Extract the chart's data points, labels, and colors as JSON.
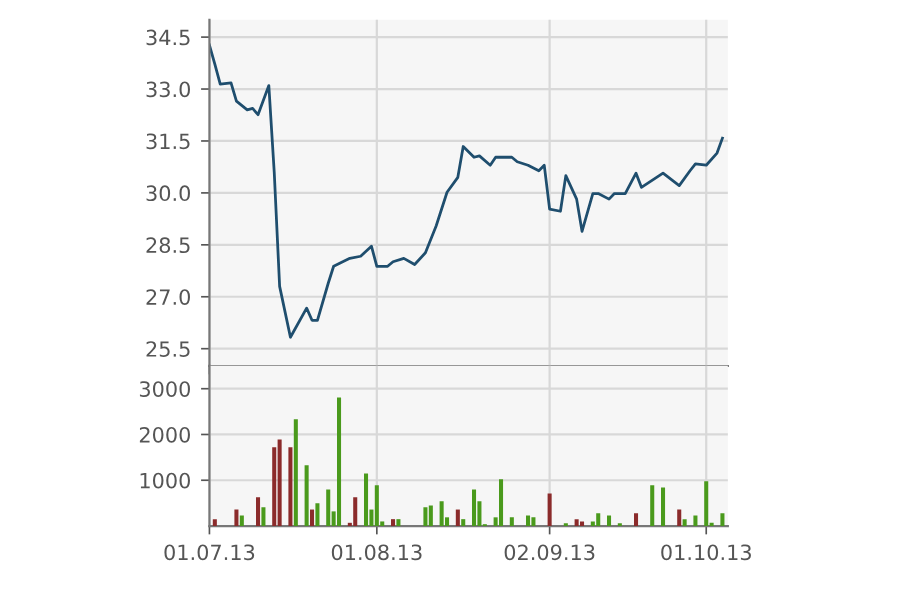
{
  "chart_data": [
    {
      "type": "line",
      "x": [
        "2013-07-01",
        "2013-07-02",
        "2013-07-03",
        "2013-07-05",
        "2013-07-06",
        "2013-07-08",
        "2013-07-09",
        "2013-07-10",
        "2013-07-12",
        "2013-07-13",
        "2013-07-14",
        "2013-07-16",
        "2013-07-19",
        "2013-07-20",
        "2013-07-21",
        "2013-07-23",
        "2013-07-24",
        "2013-07-27",
        "2013-07-29",
        "2013-07-31",
        "2013-08-01",
        "2013-08-03",
        "2013-08-04",
        "2013-08-06",
        "2013-08-08",
        "2013-08-10",
        "2013-08-12",
        "2013-08-14",
        "2013-08-16",
        "2013-08-17",
        "2013-08-19",
        "2013-08-20",
        "2013-08-22",
        "2013-08-23",
        "2013-08-26",
        "2013-08-27",
        "2013-08-29",
        "2013-08-31",
        "2013-09-01",
        "2013-09-02",
        "2013-09-04",
        "2013-09-05",
        "2013-09-07",
        "2013-09-08",
        "2013-09-10",
        "2013-09-11",
        "2013-09-13",
        "2013-09-14",
        "2013-09-16",
        "2013-09-18",
        "2013-09-19",
        "2013-09-23",
        "2013-09-26",
        "2013-09-28",
        "2013-09-29",
        "2013-10-01",
        "2013-10-03",
        "2013-10-04"
      ],
      "series": [
        {
          "color": "#1f4e6e",
          "values": [
            34.27,
            33.72,
            33.14,
            33.18,
            32.65,
            32.4,
            32.44,
            32.26,
            33.1,
            30.6,
            27.3,
            25.83,
            26.67,
            26.32,
            26.32,
            27.39,
            27.88,
            28.11,
            28.17,
            28.46,
            27.88,
            27.88,
            28.01,
            28.11,
            27.93,
            28.27,
            29.05,
            30.02,
            30.45,
            31.34,
            31.03,
            31.07,
            30.8,
            31.03,
            31.03,
            30.9,
            30.8,
            30.64,
            30.8,
            29.53,
            29.47,
            30.5,
            29.82,
            28.89,
            29.98,
            29.98,
            29.82,
            29.98,
            29.98,
            30.57,
            30.16,
            30.57,
            30.21,
            30.64,
            30.84,
            30.8,
            31.15,
            31.58
          ]
        }
      ],
      "xlim": [
        "2013-07-01",
        "2013-10-05"
      ],
      "xticks": [
        {
          "value": "2013-07-01",
          "label": null
        },
        {
          "value": "2013-08-01",
          "label": null
        },
        {
          "value": "2013-09-02",
          "label": null
        },
        {
          "value": "2013-10-01",
          "label": null
        }
      ],
      "ylim": [
        25,
        35
      ],
      "yticks": [
        {
          "value": 25.5,
          "label": "25.5"
        },
        {
          "value": 27,
          "label": "27.0"
        },
        {
          "value": 28.5,
          "label": "28.5"
        },
        {
          "value": 30,
          "label": "30.0"
        },
        {
          "value": 31.5,
          "label": "31.5"
        },
        {
          "value": 33,
          "label": "33.0"
        },
        {
          "value": 34.5,
          "label": "34.5"
        }
      ],
      "grid": true,
      "tick_labels": "y"
    },
    {
      "type": "bar",
      "x": [
        "2013-07-02",
        "2013-07-06",
        "2013-07-07",
        "2013-07-10",
        "2013-07-11",
        "2013-07-13",
        "2013-07-14",
        "2013-07-16",
        "2013-07-17",
        "2013-07-19",
        "2013-07-20",
        "2013-07-21",
        "2013-07-23",
        "2013-07-24",
        "2013-07-25",
        "2013-07-27",
        "2013-07-28",
        "2013-07-30",
        "2013-07-31",
        "2013-08-01",
        "2013-08-02",
        "2013-08-04",
        "2013-08-05",
        "2013-08-10",
        "2013-08-11",
        "2013-08-13",
        "2013-08-14",
        "2013-08-16",
        "2013-08-17",
        "2013-08-19",
        "2013-08-20",
        "2013-08-21",
        "2013-08-23",
        "2013-08-24",
        "2013-08-26",
        "2013-08-29",
        "2013-08-30",
        "2013-09-02",
        "2013-09-05",
        "2013-09-07",
        "2013-09-08",
        "2013-09-10",
        "2013-09-11",
        "2013-09-13",
        "2013-09-15",
        "2013-09-18",
        "2013-09-21",
        "2013-09-23",
        "2013-09-26",
        "2013-09-27",
        "2013-09-29",
        "2013-10-01",
        "2013-10-02",
        "2013-10-04"
      ],
      "series": [
        {
          "values": [
            150,
            360,
            230,
            630,
            410,
            1720,
            1890,
            1720,
            2330,
            1330,
            360,
            500,
            800,
            320,
            2810,
            70,
            630,
            1150,
            360,
            890,
            100,
            150,
            150,
            410,
            450,
            540,
            190,
            360,
            150,
            800,
            540,
            40,
            190,
            1020,
            190,
            230,
            190,
            710,
            60,
            150,
            100,
            100,
            280,
            230,
            60,
            280,
            890,
            840,
            360,
            150,
            230,
            980,
            70,
            280
          ],
          "colors": [
            "#8b2b2b",
            "#8b2b2b",
            "#4a9a1c",
            "#8b2b2b",
            "#4a9a1c",
            "#8b2b2b",
            "#8b2b2b",
            "#8b2b2b",
            "#4a9a1c",
            "#4a9a1c",
            "#8b2b2b",
            "#4a9a1c",
            "#4a9a1c",
            "#4a9a1c",
            "#4a9a1c",
            "#8b2b2b",
            "#8b2b2b",
            "#4a9a1c",
            "#4a9a1c",
            "#4a9a1c",
            "#4a9a1c",
            "#8b2b2b",
            "#4a9a1c",
            "#4a9a1c",
            "#4a9a1c",
            "#4a9a1c",
            "#4a9a1c",
            "#8b2b2b",
            "#4a9a1c",
            "#4a9a1c",
            "#4a9a1c",
            "#4a9a1c",
            "#4a9a1c",
            "#4a9a1c",
            "#4a9a1c",
            "#4a9a1c",
            "#4a9a1c",
            "#8b2b2b",
            "#4a9a1c",
            "#8b2b2b",
            "#8b2b2b",
            "#4a9a1c",
            "#4a9a1c",
            "#4a9a1c",
            "#4a9a1c",
            "#8b2b2b",
            "#4a9a1c",
            "#4a9a1c",
            "#8b2b2b",
            "#4a9a1c",
            "#4a9a1c",
            "#4a9a1c",
            "#4a9a1c",
            "#4a9a1c"
          ]
        }
      ],
      "xlim": [
        "2013-07-01",
        "2013-10-05"
      ],
      "xticks": [
        {
          "value": "2013-07-01",
          "label": "01.07.13"
        },
        {
          "value": "2013-08-01",
          "label": "01.08.13"
        },
        {
          "value": "2013-09-02",
          "label": "02.09.13"
        },
        {
          "value": "2013-10-01",
          "label": "01.10.13"
        }
      ],
      "ylim": [
        0,
        3500
      ],
      "yticks": [
        1000,
        2000,
        3000
      ],
      "grid": true
    }
  ]
}
